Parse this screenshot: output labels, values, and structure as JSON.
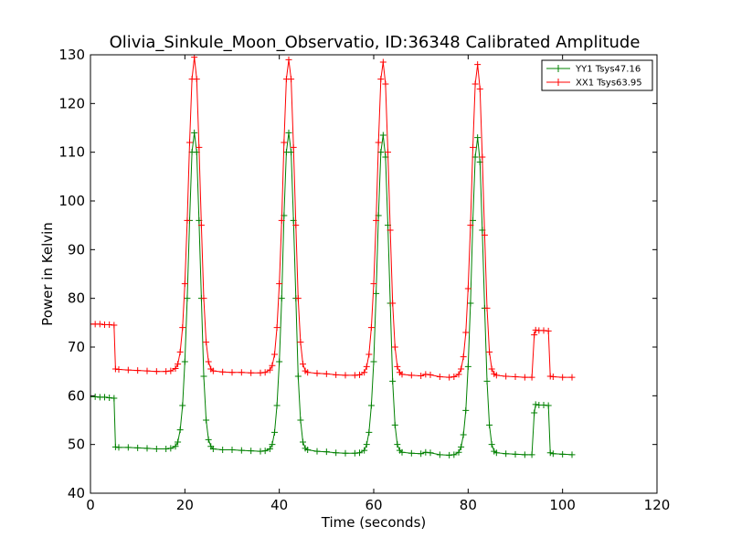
{
  "chart_data": {
    "type": "line",
    "title": "Olivia_Sinkule_Moon_Observatio, ID:36348 Calibrated Amplitude",
    "xlabel": "Time (seconds)",
    "ylabel": "Power in Kelvin",
    "xlim": [
      0,
      120
    ],
    "ylim": [
      40,
      130
    ],
    "xticks": [
      "0",
      "20",
      "40",
      "60",
      "80",
      "100",
      "120"
    ],
    "yticks": [
      "40",
      "50",
      "60",
      "70",
      "80",
      "90",
      "100",
      "110",
      "120",
      "130"
    ],
    "grid": false,
    "legend_position": "top-right",
    "series": [
      {
        "name": "YY1 Tsys47.16",
        "color": "#008000",
        "marker": "plus",
        "points": [
          [
            0,
            59.8
          ],
          [
            1,
            59.8
          ],
          [
            2,
            59.7
          ],
          [
            3,
            59.7
          ],
          [
            4,
            59.6
          ],
          [
            5,
            59.5
          ],
          [
            5.3,
            49.5
          ],
          [
            6,
            49.4
          ],
          [
            8,
            49.4
          ],
          [
            10,
            49.3
          ],
          [
            12,
            49.2
          ],
          [
            14,
            49.1
          ],
          [
            16,
            49.1
          ],
          [
            17,
            49.2
          ],
          [
            18,
            49.6
          ],
          [
            18.5,
            50.5
          ],
          [
            19,
            53
          ],
          [
            19.5,
            58
          ],
          [
            20,
            67
          ],
          [
            20.5,
            80
          ],
          [
            21,
            96
          ],
          [
            21.5,
            110
          ],
          [
            22,
            114
          ],
          [
            22.5,
            110
          ],
          [
            23,
            96
          ],
          [
            23.5,
            80
          ],
          [
            24,
            64
          ],
          [
            24.5,
            55
          ],
          [
            25,
            51
          ],
          [
            25.5,
            49.6
          ],
          [
            26,
            49.1
          ],
          [
            28,
            48.9
          ],
          [
            30,
            48.9
          ],
          [
            32,
            48.8
          ],
          [
            34,
            48.7
          ],
          [
            36,
            48.6
          ],
          [
            37,
            48.7
          ],
          [
            38,
            49.1
          ],
          [
            38.5,
            50
          ],
          [
            39,
            52.5
          ],
          [
            39.5,
            58
          ],
          [
            40,
            67
          ],
          [
            40.5,
            80
          ],
          [
            41,
            97
          ],
          [
            41.5,
            110
          ],
          [
            42,
            114
          ],
          [
            42.5,
            110
          ],
          [
            43,
            96
          ],
          [
            43.5,
            80
          ],
          [
            44,
            64
          ],
          [
            44.5,
            55
          ],
          [
            45,
            50.5
          ],
          [
            45.5,
            49.2
          ],
          [
            46,
            48.9
          ],
          [
            48,
            48.6
          ],
          [
            50,
            48.5
          ],
          [
            52,
            48.3
          ],
          [
            54,
            48.2
          ],
          [
            56,
            48.2
          ],
          [
            57,
            48.3
          ],
          [
            58,
            48.8
          ],
          [
            58.5,
            50
          ],
          [
            59,
            52.5
          ],
          [
            59.5,
            58
          ],
          [
            60,
            67
          ],
          [
            60.5,
            81
          ],
          [
            61,
            97
          ],
          [
            61.5,
            110
          ],
          [
            62,
            113.5
          ],
          [
            62.5,
            109
          ],
          [
            63,
            95
          ],
          [
            63.5,
            79
          ],
          [
            64,
            63
          ],
          [
            64.5,
            54
          ],
          [
            65,
            50
          ],
          [
            65.5,
            48.8
          ],
          [
            66,
            48.4
          ],
          [
            68,
            48.2
          ],
          [
            70,
            48.1
          ],
          [
            71,
            48.4
          ],
          [
            72,
            48.3
          ],
          [
            74,
            47.9
          ],
          [
            76,
            47.8
          ],
          [
            77,
            47.9
          ],
          [
            78,
            48.4
          ],
          [
            78.5,
            49.5
          ],
          [
            79,
            52
          ],
          [
            79.5,
            57
          ],
          [
            80,
            66
          ],
          [
            80.5,
            79
          ],
          [
            81,
            96
          ],
          [
            81.5,
            109
          ],
          [
            82,
            113
          ],
          [
            82.5,
            108
          ],
          [
            83,
            94
          ],
          [
            83.5,
            78
          ],
          [
            84,
            63
          ],
          [
            84.5,
            54
          ],
          [
            85,
            50
          ],
          [
            85.5,
            48.6
          ],
          [
            86,
            48.3
          ],
          [
            88,
            48.1
          ],
          [
            90,
            48.0
          ],
          [
            92,
            47.9
          ],
          [
            93.5,
            47.9
          ],
          [
            94,
            56.5
          ],
          [
            94.3,
            58.2
          ],
          [
            95,
            58.1
          ],
          [
            96,
            58.1
          ],
          [
            97,
            58.0
          ],
          [
            97.4,
            48.3
          ],
          [
            98,
            48.1
          ],
          [
            100,
            48.0
          ],
          [
            102,
            47.9
          ]
        ]
      },
      {
        "name": "XX1 Tsys63.95",
        "color": "#ff0000",
        "marker": "plus",
        "points": [
          [
            0,
            74.7
          ],
          [
            1,
            74.7
          ],
          [
            2,
            74.7
          ],
          [
            3,
            74.6
          ],
          [
            4,
            74.6
          ],
          [
            5,
            74.5
          ],
          [
            5.3,
            65.5
          ],
          [
            6,
            65.4
          ],
          [
            8,
            65.3
          ],
          [
            10,
            65.2
          ],
          [
            12,
            65.1
          ],
          [
            14,
            65.0
          ],
          [
            16,
            65.0
          ],
          [
            17,
            65.1
          ],
          [
            18,
            65.6
          ],
          [
            18.5,
            66.5
          ],
          [
            19,
            69
          ],
          [
            19.5,
            74
          ],
          [
            20,
            83
          ],
          [
            20.5,
            96
          ],
          [
            21,
            112
          ],
          [
            21.5,
            125
          ],
          [
            22,
            129.5
          ],
          [
            22.5,
            125
          ],
          [
            23,
            111
          ],
          [
            23.5,
            95
          ],
          [
            24,
            80
          ],
          [
            24.5,
            71
          ],
          [
            25,
            67
          ],
          [
            25.5,
            65.5
          ],
          [
            26,
            65.1
          ],
          [
            28,
            64.9
          ],
          [
            30,
            64.8
          ],
          [
            32,
            64.8
          ],
          [
            34,
            64.7
          ],
          [
            36,
            64.7
          ],
          [
            37,
            64.8
          ],
          [
            38,
            65.3
          ],
          [
            38.5,
            66.2
          ],
          [
            39,
            68.5
          ],
          [
            39.5,
            74
          ],
          [
            40,
            83
          ],
          [
            40.5,
            96
          ],
          [
            41,
            112
          ],
          [
            41.5,
            125
          ],
          [
            42,
            129
          ],
          [
            42.5,
            125
          ],
          [
            43,
            111
          ],
          [
            43.5,
            95
          ],
          [
            44,
            80
          ],
          [
            44.5,
            71
          ],
          [
            45,
            66.5
          ],
          [
            45.5,
            65.1
          ],
          [
            46,
            64.8
          ],
          [
            48,
            64.6
          ],
          [
            50,
            64.5
          ],
          [
            52,
            64.3
          ],
          [
            54,
            64.2
          ],
          [
            56,
            64.2
          ],
          [
            57,
            64.3
          ],
          [
            58,
            64.8
          ],
          [
            58.5,
            66
          ],
          [
            59,
            68.5
          ],
          [
            59.5,
            74
          ],
          [
            60,
            83
          ],
          [
            60.5,
            96
          ],
          [
            61,
            112
          ],
          [
            61.5,
            125
          ],
          [
            62,
            128.5
          ],
          [
            62.5,
            124
          ],
          [
            63,
            110
          ],
          [
            63.5,
            94
          ],
          [
            64,
            79
          ],
          [
            64.5,
            70
          ],
          [
            65,
            66
          ],
          [
            65.5,
            64.8
          ],
          [
            66,
            64.4
          ],
          [
            68,
            64.2
          ],
          [
            70,
            64.1
          ],
          [
            71,
            64.4
          ],
          [
            72,
            64.3
          ],
          [
            74,
            63.9
          ],
          [
            76,
            63.8
          ],
          [
            77,
            63.9
          ],
          [
            78,
            64.4
          ],
          [
            78.5,
            65.5
          ],
          [
            79,
            68
          ],
          [
            79.5,
            73
          ],
          [
            80,
            82
          ],
          [
            80.5,
            95
          ],
          [
            81,
            111
          ],
          [
            81.5,
            124
          ],
          [
            82,
            128
          ],
          [
            82.5,
            123
          ],
          [
            83,
            109
          ],
          [
            83.5,
            93
          ],
          [
            84,
            78
          ],
          [
            84.5,
            69
          ],
          [
            85,
            65.5
          ],
          [
            85.5,
            64.5
          ],
          [
            86,
            64.2
          ],
          [
            88,
            64.0
          ],
          [
            90,
            63.9
          ],
          [
            92,
            63.8
          ],
          [
            93.5,
            63.8
          ],
          [
            94,
            72.5
          ],
          [
            94.3,
            73.5
          ],
          [
            95,
            73.4
          ],
          [
            96,
            73.4
          ],
          [
            97,
            73.3
          ],
          [
            97.4,
            64.0
          ],
          [
            98,
            63.9
          ],
          [
            100,
            63.8
          ],
          [
            102,
            63.8
          ]
        ]
      }
    ]
  }
}
